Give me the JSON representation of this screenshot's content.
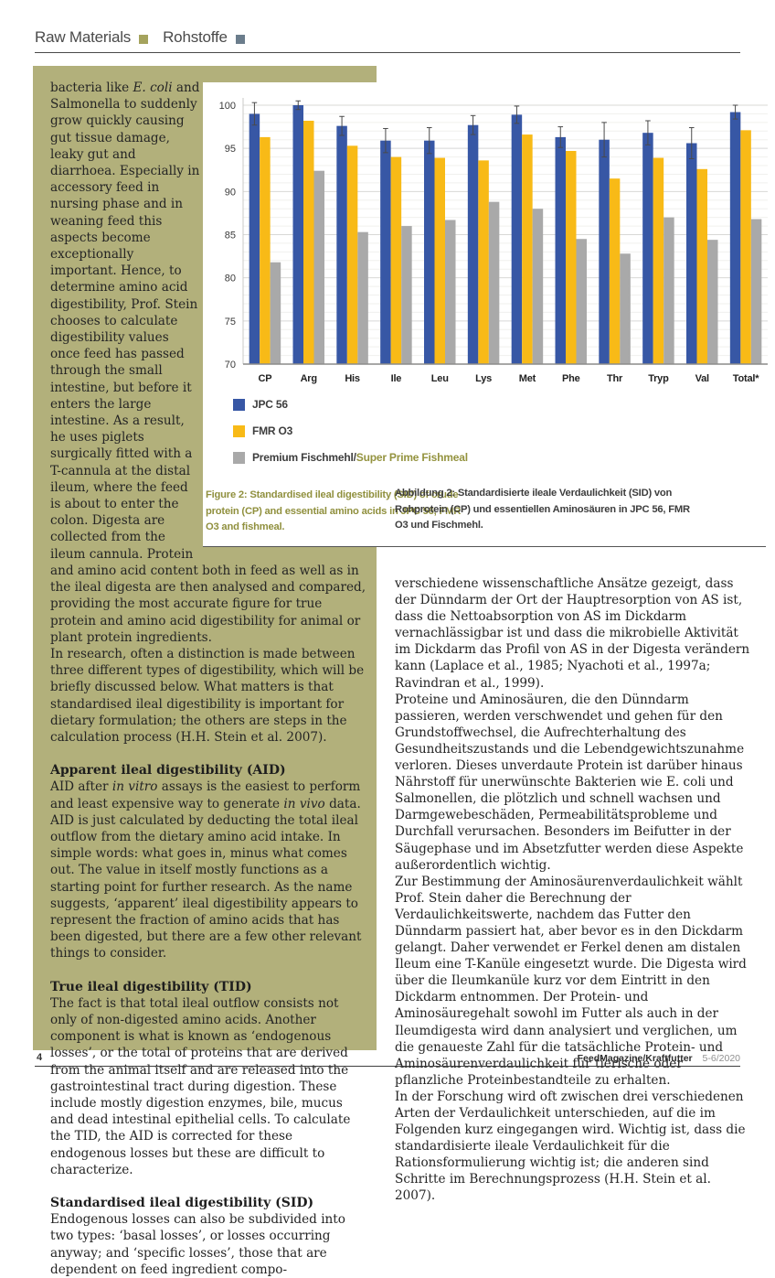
{
  "page": {
    "page_number": "4",
    "magazine": "FeedMagazine/Kraftfutter",
    "issue": "5-6/2020"
  },
  "header": {
    "section_en": "Raw Materials",
    "section_de": "Rohstoffe"
  },
  "colors": {
    "olive_box": "#b2b07b",
    "olive_accent": "#94933f",
    "header_square_en": "#a5a35d",
    "header_square_de": "#6b7d8c",
    "bar_blue": "#3757a5",
    "bar_yellow": "#f8ba17",
    "bar_gray": "#a9a9a9"
  },
  "article_left": {
    "blocks": [
      {
        "type": "p",
        "text": "bacteria like *E. coli* and Salmonella to suddenly grow quickly causing gut tissue damage, leaky gut and diarrhoea. Especially in accessory feed in nursing phase and in weaning feed this aspects become exceptionally important. Hence, to determine amino acid digestibility, Prof. Stein chooses to calculate digestibility values once feed has passed through the small intestine, but before it enters the large intestine. As a result, he uses piglets surgically fitted with a T-cannula at the distal ileum, where the feed is about to enter the colon. Digesta are collected from the ileum cannula. Protein and amino acid content both in feed as well as in the ileal digesta are then analysed and compared, providing the most accurate figure for true protein and amino acid digestibility for animal or plant protein ingredients."
      },
      {
        "type": "p",
        "text": "In research, often a distinction is made between three different types of digestibility, which will be briefly discussed below. What matters is that standardised ileal digestibility is important for dietary formulation; the others are steps in the calculation process (H.H. Stein et al. 2007)."
      },
      {
        "type": "h",
        "text": "Apparent ileal digestibility (AID)"
      },
      {
        "type": "p",
        "text": "AID after *in vitro* assays is the easiest to perform and least expensive way to generate *in vivo* data. AID is just calculated by deducting the total ileal outflow from the dietary amino acid intake. In simple words: what goes in, minus what comes out. The value in itself mostly functions as a starting point for further research. As the name suggests, ‘apparent’ ileal digestibility appears to represent the fraction of amino acids that has been digested, but there are a few other relevant things to consider."
      },
      {
        "type": "h",
        "text": "True ileal digestibility (TID)"
      },
      {
        "type": "p",
        "text": "The fact is that total ileal outflow consists not only of non-digested amino acids. Another component is what is known as ‘endogenous losses’, or the total of proteins that are derived from the animal itself and are released into the gastrointestinal tract during digestion. These include mostly digestion enzymes, bile, mucus and dead intestinal epithelial cells. To calculate the TID, the AID is corrected for these endogenous losses but these are difficult to characterize."
      },
      {
        "type": "h",
        "text": "Standardised ileal digestibility (SID)"
      },
      {
        "type": "p",
        "text": "Endogenous losses can also be subdivided into two types: ‘basal losses’, or losses occurring anyway; and ‘specific losses’, those that are dependent on feed ingredient compo-"
      }
    ]
  },
  "figure": {
    "caption_en": "Figure 2: Standardised ileal digestibility (SID) of crude protein (CP) and essential amino acids in JPC 56, FMR O3 and fishmeal.",
    "caption_de": "Abbildung 2: Standardisierte ileale Verdaulichkeit (SID) von Rohprotein (CP) und essentiellen Aminosäuren in JPC 56, FMR O3 und Fischmehl.",
    "legend": [
      {
        "label": "JPC 56",
        "color": "#3757a5"
      },
      {
        "label": "FMR O3",
        "color": "#f8ba17"
      },
      {
        "label": "Premium Fischmehl/",
        "label_accent": "Super Prime Fishmeal",
        "color": "#a9a9a9"
      }
    ]
  },
  "chart_data": {
    "type": "bar",
    "title": "",
    "xlabel": "",
    "ylabel": "",
    "categories": [
      "CP",
      "Arg",
      "His",
      "Ile",
      "Leu",
      "Lys",
      "Met",
      "Phe",
      "Thr",
      "Tryp",
      "Val",
      "Total*"
    ],
    "series": [
      {
        "name": "JPC 56",
        "color": "#3757a5",
        "values": [
          99.0,
          100.0,
          97.6,
          95.9,
          95.9,
          97.7,
          98.9,
          96.3,
          96.0,
          96.8,
          95.6,
          99.2
        ],
        "errors": [
          1.3,
          0.5,
          1.1,
          1.4,
          1.5,
          1.1,
          1.0,
          1.2,
          2.0,
          1.4,
          1.8,
          0.8
        ]
      },
      {
        "name": "FMR O3",
        "color": "#f8ba17",
        "values": [
          96.3,
          98.2,
          95.3,
          94.0,
          93.9,
          93.6,
          96.6,
          94.7,
          91.5,
          93.9,
          92.6,
          97.1
        ]
      },
      {
        "name": "Premium Fischmehl/Super Prime Fishmeal",
        "color": "#a9a9a9",
        "values": [
          81.8,
          92.4,
          85.3,
          86.0,
          86.7,
          88.8,
          88.0,
          84.5,
          82.8,
          87.0,
          84.4,
          86.8
        ]
      }
    ],
    "ylim": [
      70,
      100
    ],
    "yticks": [
      70,
      75,
      80,
      85,
      90,
      95,
      100
    ],
    "grid": true,
    "legend_position": "below-left"
  },
  "article_right": {
    "paragraphs": [
      "verschiedene wissenschaftliche Ansätze gezeigt, dass der Dünndarm der Ort der Hauptresorption von AS ist, dass die Nettoabsorption von AS im Dickdarm vernachlässigbar ist und dass die mikrobielle Aktivität im Dickdarm das Profil von AS in der Digesta verändern kann (Laplace et al., 1985; Nyachoti et al., 1997a; Ravindran et al., 1999).",
      "Proteine und Aminosäuren, die den Dünndarm passieren, werden verschwendet und gehen für den Grundstoffwechsel, die Aufrechterhaltung des Gesundheitszustands und die Lebendgewichtszunahme verloren. Dieses unverdaute Protein ist darüber hinaus Nährstoff für unerwünschte Bakterien wie E. coli und Salmonellen, die plötzlich und schnell wachsen und Darmgewebeschäden, Permeabilitätsprobleme und Durchfall verursachen. Besonders im Beifutter in der Säugephase und im Absetzfutter werden diese Aspekte außerordentlich wichtig.",
      "Zur Bestimmung der Aminosäurenverdaulichkeit wählt Prof. Stein daher die Berechnung der Verdaulichkeitswerte, nachdem das Futter den Dünndarm passiert hat, aber bevor es in den Dickdarm gelangt. Daher verwendet er Ferkel denen am distalen Ileum eine T-Kanüle eingesetzt wurde. Die Digesta wird über die Ileumkanüle kurz vor dem Eintritt in den Dickdarm entnommen. Der Protein- und Aminosäuregehalt sowohl im Futter als auch in der Ileumdigesta wird dann analysiert und verglichen, um die genaueste Zahl für die tatsächliche Protein- und Aminosäurenverdaulichkeit für tierische oder pflanzliche Proteinbestandteile zu erhalten.",
      "In der Forschung wird oft zwischen drei verschiedenen Arten der Verdaulichkeit unterschieden, auf die im Folgenden kurz eingegangen wird. Wichtig ist, dass die standardisierte ileale Verdaulichkeit für die Rationsformulierung wichtig ist; die anderen sind Schritte im Berechnungsprozess (H.H. Stein et al. 2007)."
    ]
  }
}
